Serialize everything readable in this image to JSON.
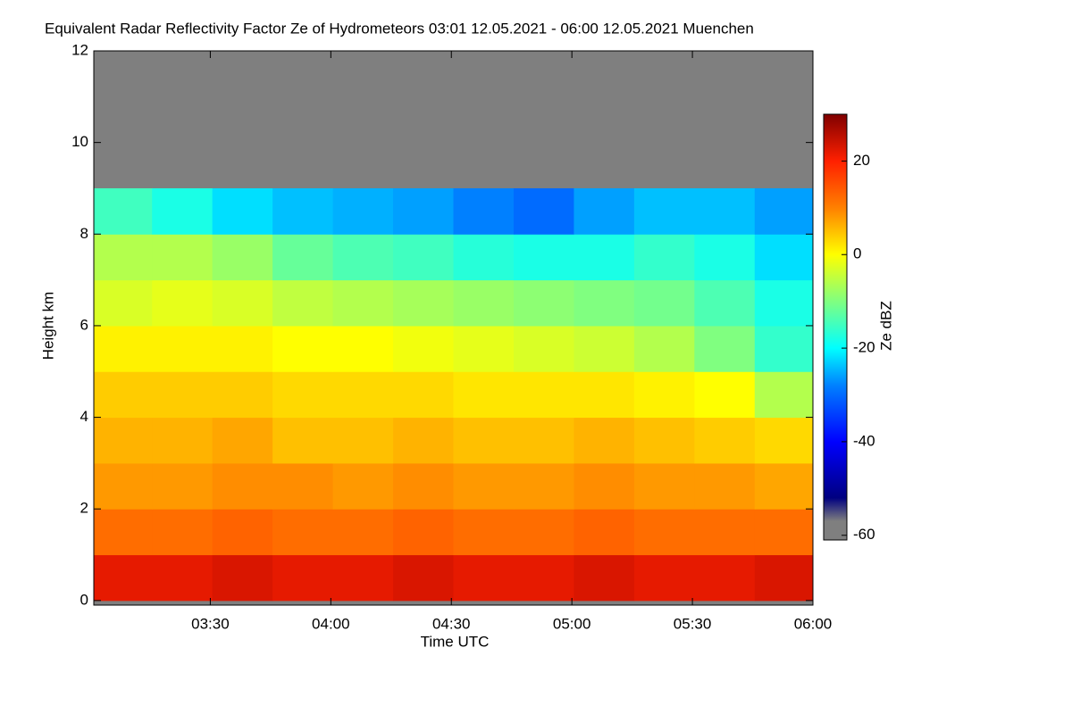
{
  "chart_data": {
    "type": "heatmap",
    "title": "Equivalent Radar Reflectivity Factor Ze of Hydrometeors   03:01 12.05.2021 - 06:00 12.05.2021 Muenchen",
    "x_label": "Time UTC",
    "y_label": "Height km",
    "colorbar_label": "Ze dBZ",
    "xlim": [
      181,
      360
    ],
    "xticks": [
      {
        "value": 210,
        "label": "03:30"
      },
      {
        "value": 240,
        "label": "04:00"
      },
      {
        "value": 270,
        "label": "04:30"
      },
      {
        "value": 300,
        "label": "05:00"
      },
      {
        "value": 330,
        "label": "05:30"
      },
      {
        "value": 360,
        "label": "06:00"
      }
    ],
    "ylim": [
      -0.1,
      12
    ],
    "yticks": [
      0,
      2,
      4,
      6,
      8,
      10,
      12
    ],
    "zlim": [
      -61,
      30
    ],
    "zticks": [
      -60,
      -40,
      -20,
      0,
      20
    ],
    "background_color": "#7f7f7f",
    "colorscale": [
      [
        -61,
        "#7f7f7f"
      ],
      [
        -57,
        "#7f7f7f"
      ],
      [
        -52,
        "#000080"
      ],
      [
        -40,
        "#0000ff"
      ],
      [
        -28,
        "#0080ff"
      ],
      [
        -20,
        "#00ffff"
      ],
      [
        -10,
        "#80ff80"
      ],
      [
        0,
        "#ffff00"
      ],
      [
        10,
        "#ff8000"
      ],
      [
        20,
        "#ff2000"
      ],
      [
        30,
        "#800000"
      ]
    ],
    "x": [
      188,
      203,
      218,
      233,
      248,
      263,
      278,
      293,
      308,
      323,
      338,
      353
    ],
    "y": [
      0.5,
      1.5,
      2.5,
      3.5,
      4.5,
      5.5,
      6.5,
      7.5,
      8.5
    ],
    "z": [
      [
        22,
        22,
        23,
        22,
        22,
        23,
        22,
        22,
        23,
        22,
        22,
        23
      ],
      [
        12,
        12,
        13,
        12,
        12,
        13,
        12,
        12,
        13,
        12,
        12,
        12
      ],
      [
        8,
        8,
        9,
        9,
        8,
        9,
        8,
        8,
        9,
        8,
        8,
        7
      ],
      [
        6,
        6,
        7,
        5,
        5,
        6,
        5,
        5,
        6,
        5,
        4,
        3
      ],
      [
        4,
        4,
        4,
        3,
        3,
        3,
        2,
        2,
        2,
        1,
        0,
        -6
      ],
      [
        1,
        1,
        1,
        0,
        0,
        -1,
        -2,
        -3,
        -4,
        -6,
        -10,
        -16
      ],
      [
        -3,
        -2,
        -3,
        -5,
        -6,
        -7,
        -8,
        -9,
        -10,
        -11,
        -14,
        -18
      ],
      [
        -6,
        -6,
        -8,
        -12,
        -14,
        -15,
        -17,
        -18,
        -18,
        -16,
        -18,
        -22
      ],
      [
        -15,
        -18,
        -22,
        -24,
        -25,
        -26,
        -28,
        -30,
        -26,
        -24,
        -24,
        -26
      ]
    ]
  }
}
